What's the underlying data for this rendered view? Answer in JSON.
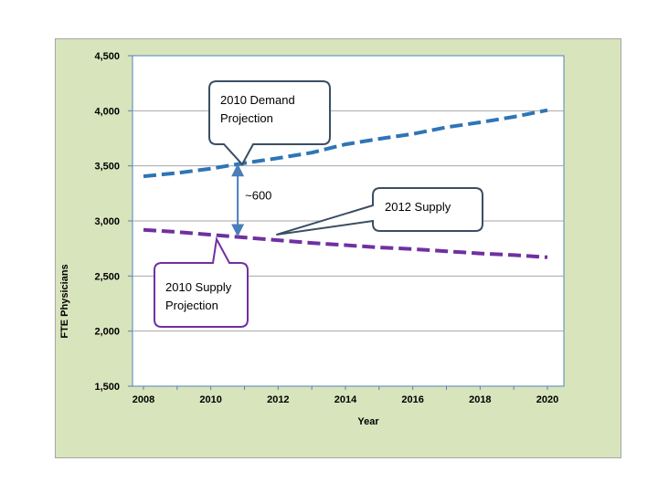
{
  "chart_data": {
    "type": "line",
    "xlabel": "Year",
    "ylabel": "FTE Physicians",
    "xlim": [
      2008,
      2020
    ],
    "ylim": [
      1500,
      4500
    ],
    "xticks": [
      2008,
      2010,
      2012,
      2014,
      2016,
      2018,
      2020
    ],
    "yticks": [
      1500,
      2000,
      2500,
      3000,
      3500,
      4000,
      4500
    ],
    "ytick_labels": [
      "1,500",
      "2,000",
      "2,500",
      "3,000",
      "3,500",
      "4,000",
      "4,500"
    ],
    "grid": "horizontal",
    "series": [
      {
        "name": "2010 Demand Projection",
        "color": "#2e75b6",
        "style": "dashed",
        "x": [
          2008,
          2009,
          2010,
          2011,
          2012,
          2013,
          2014,
          2015,
          2016,
          2017,
          2018,
          2019,
          2020
        ],
        "y": [
          3405,
          3435,
          3475,
          3525,
          3570,
          3620,
          3695,
          3745,
          3790,
          3850,
          3895,
          3945,
          4005
        ]
      },
      {
        "name": "2010 Supply Projection",
        "color": "#7030a0",
        "style": "dashed",
        "x": [
          2008,
          2009,
          2010,
          2011,
          2012,
          2013,
          2014,
          2015,
          2016,
          2017,
          2018,
          2019,
          2020
        ],
        "y": [
          2920,
          2900,
          2875,
          2850,
          2825,
          2800,
          2780,
          2760,
          2745,
          2725,
          2705,
          2690,
          2670
        ]
      }
    ],
    "annotations": {
      "demand_label": [
        "2010 Demand",
        "Projection"
      ],
      "supply_label": [
        "2010 Supply",
        "Projection"
      ],
      "supply_2012_label": "2012 Supply",
      "gap_label": "~600",
      "gap_x": 2010.8,
      "gap_from": 3525,
      "gap_to": 2850,
      "supply_2012_arrow_to": [
        2012,
        2900
      ]
    }
  }
}
